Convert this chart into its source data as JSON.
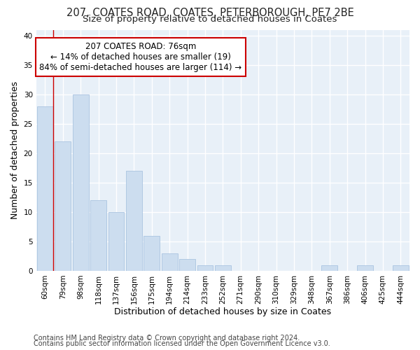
{
  "title1": "207, COATES ROAD, COATES, PETERBOROUGH, PE7 2BE",
  "title2": "Size of property relative to detached houses in Coates",
  "xlabel": "Distribution of detached houses by size in Coates",
  "ylabel": "Number of detached properties",
  "categories": [
    "60sqm",
    "79sqm",
    "98sqm",
    "118sqm",
    "137sqm",
    "156sqm",
    "175sqm",
    "194sqm",
    "214sqm",
    "233sqm",
    "252sqm",
    "271sqm",
    "290sqm",
    "310sqm",
    "329sqm",
    "348sqm",
    "367sqm",
    "386sqm",
    "406sqm",
    "425sqm",
    "444sqm"
  ],
  "values": [
    28,
    22,
    30,
    12,
    10,
    17,
    6,
    3,
    2,
    1,
    1,
    0,
    0,
    0,
    0,
    0,
    1,
    0,
    1,
    0,
    1
  ],
  "bar_color": "#ccddef",
  "bar_edge_color": "#aac4e0",
  "highlight_line_color": "#cc0000",
  "annotation_text": "207 COATES ROAD: 76sqm\n← 14% of detached houses are smaller (19)\n84% of semi-detached houses are larger (114) →",
  "annotation_box_color": "#ffffff",
  "annotation_box_edge": "#cc0000",
  "ylim": [
    0,
    41
  ],
  "yticks": [
    0,
    5,
    10,
    15,
    20,
    25,
    30,
    35,
    40
  ],
  "footer1": "Contains HM Land Registry data © Crown copyright and database right 2024.",
  "footer2": "Contains public sector information licensed under the Open Government Licence v3.0.",
  "background_color": "#ffffff",
  "plot_bg_color": "#e8f0f8",
  "grid_color": "#ffffff",
  "title1_fontsize": 10.5,
  "title2_fontsize": 9.5,
  "axis_label_fontsize": 9,
  "tick_fontsize": 7.5,
  "footer_fontsize": 7
}
